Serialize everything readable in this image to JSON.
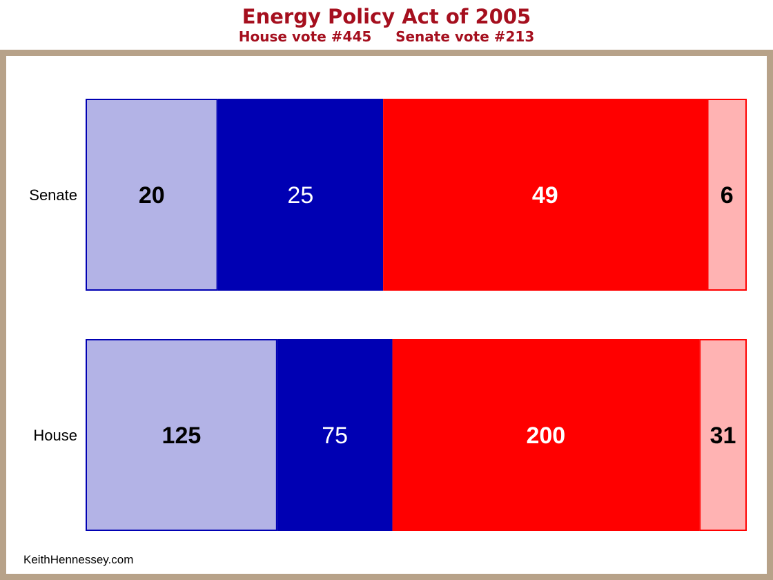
{
  "chart_data": {
    "type": "bar",
    "orientation": "horizontal",
    "stacked": true,
    "title": "Energy Policy Act of 2005",
    "subtitle": "House vote #445     Senate vote #213",
    "categories": [
      "Senate",
      "House"
    ],
    "series": [
      {
        "values": [
          20,
          125
        ],
        "color": "#b3b3e6",
        "border": "#0000b3",
        "label_color": "#000000",
        "label_bold": true
      },
      {
        "values": [
          25,
          75
        ],
        "color": "#0000b3",
        "border": "#0000b3",
        "label_color": "#ffffff",
        "label_bold": false
      },
      {
        "values": [
          49,
          200
        ],
        "color": "#ff0000",
        "border": "#ff0000",
        "label_color": "#ffffff",
        "label_bold": true
      },
      {
        "values": [
          6,
          31
        ],
        "color": "#ffb3b3",
        "border": "#ff0000",
        "label_color": "#000000",
        "label_bold": true
      }
    ],
    "normalized_to_total": true,
    "grid": false
  },
  "credit": "KeithHennessey.com",
  "colors": {
    "title": "#a50f1e",
    "frame": "#b7a289"
  }
}
